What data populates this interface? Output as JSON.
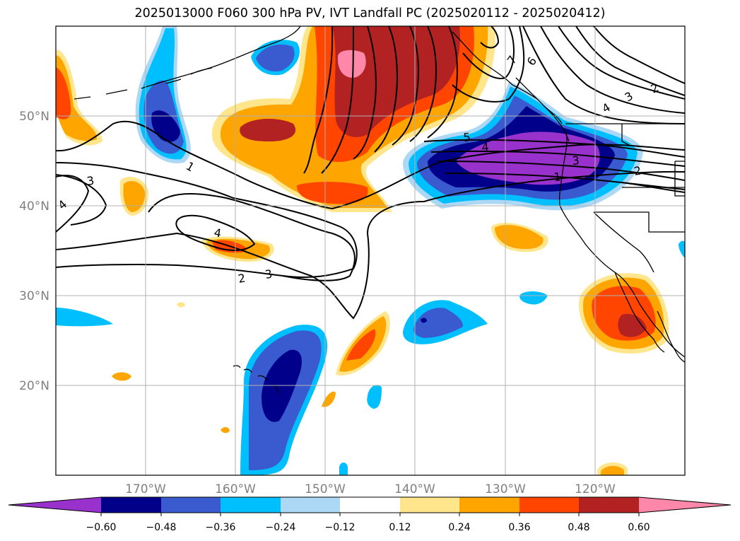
{
  "title": "2025013000 F060 300 hPa PV, IVT Landfall PC (2025020112 - 2025020412)",
  "map": {
    "projection": "PlateCarree",
    "lon_range": [
      -180,
      -110
    ],
    "lat_range": [
      10,
      60
    ],
    "gridlines": true,
    "lat_ticks": [
      {
        "value": 20,
        "label": "20°N"
      },
      {
        "value": 30,
        "label": "30°N"
      },
      {
        "value": 40,
        "label": "40°N"
      },
      {
        "value": 50,
        "label": "50°N"
      }
    ],
    "lon_ticks": [
      {
        "value": -170,
        "label": "170°W"
      },
      {
        "value": -160,
        "label": "160°W"
      },
      {
        "value": -150,
        "label": "150°W"
      },
      {
        "value": -140,
        "label": "140°W"
      },
      {
        "value": -130,
        "label": "130°W"
      },
      {
        "value": -120,
        "label": "120°W"
      }
    ]
  },
  "colorbar": {
    "ticks": [
      "−0.60",
      "−0.48",
      "−0.36",
      "−0.24",
      "−0.12",
      "0.12",
      "0.24",
      "0.36",
      "0.48",
      "0.60"
    ],
    "colors": [
      "#9932cc",
      "#00008b",
      "#3a5bd0",
      "#00bfff",
      "#add8f5",
      "#ffffff",
      "#ffe68c",
      "#ffa500",
      "#ff4500",
      "#b22222",
      "#ff88aa"
    ],
    "extend": "both"
  },
  "contour_labels": [
    "1",
    "2",
    "3",
    "4",
    "5",
    "6",
    "7"
  ],
  "pv_contours": [
    {
      "label": "1",
      "level": 1
    },
    {
      "label": "2",
      "level": 2
    },
    {
      "label": "3",
      "level": 3
    },
    {
      "label": "4",
      "level": 4
    },
    {
      "label": "5",
      "level": 5
    },
    {
      "label": "6",
      "level": 6
    },
    {
      "label": "7",
      "level": 7
    }
  ],
  "anomaly_areas": [
    {
      "name": "gulf-of-alaska",
      "lon": -145,
      "lat": 55,
      "class": "0.60"
    },
    {
      "name": "pacific-northwest",
      "lon": -130,
      "lat": 45,
      "class": "−0.60"
    },
    {
      "name": "baja-california",
      "lon": -122,
      "lat": 29,
      "class": "0.48"
    },
    {
      "name": "central-pacific-negative",
      "lon": -155,
      "lat": 21,
      "class": "−0.48"
    },
    {
      "name": "western-pacific-negative",
      "lon": -168,
      "lat": 49,
      "class": "−0.48"
    },
    {
      "name": "subtropical-positive",
      "lon": -146,
      "lat": 25,
      "class": "0.36"
    },
    {
      "name": "central-negative",
      "lon": -139,
      "lat": 27,
      "class": "−0.48"
    }
  ]
}
